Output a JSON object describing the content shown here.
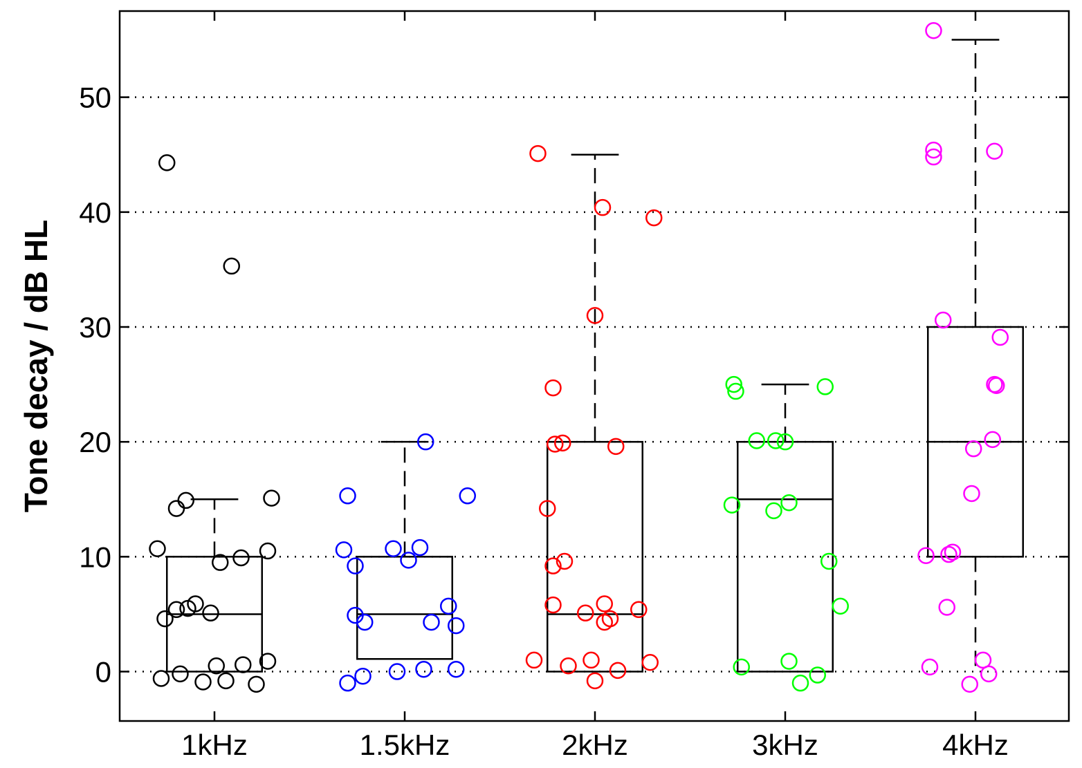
{
  "chart_data": {
    "type": "box",
    "title": "",
    "xlabel": "",
    "ylabel": "Tone decay / dB HL",
    "categories": [
      "1kHz",
      "1.5kHz",
      "2kHz",
      "3kHz",
      "4kHz"
    ],
    "ylim": [
      -4.3,
      57.5
    ],
    "yticks": [
      0,
      10,
      20,
      30,
      40,
      50
    ],
    "grid": "horizontal dotted",
    "boxes": [
      {
        "category": "1kHz",
        "color": "#000000",
        "whisker_low": 0,
        "q1": 0,
        "median": 5,
        "q3": 10,
        "whisker_high": 15
      },
      {
        "category": "1.5kHz",
        "color": "#0000ff",
        "whisker_low": 1.1,
        "q1": 1.1,
        "median": 5,
        "q3": 10,
        "whisker_high": 20
      },
      {
        "category": "2kHz",
        "color": "#ff0000",
        "whisker_low": 0,
        "q1": 0,
        "median": 5,
        "q3": 20,
        "whisker_high": 45
      },
      {
        "category": "3kHz",
        "color": "#00ff00",
        "whisker_low": 0,
        "q1": 0,
        "median": 15,
        "q3": 20,
        "whisker_high": 25
      },
      {
        "category": "4kHz",
        "color": "#ff00ff",
        "whisker_low": 0,
        "q1": 10,
        "median": 20,
        "q3": 30,
        "whisker_high": 55
      }
    ],
    "points": [
      {
        "category": "1kHz",
        "color": "#000000",
        "data": [
          [
            -0.25,
            44.3
          ],
          [
            0.09,
            35.3
          ],
          [
            -0.15,
            14.9
          ],
          [
            -0.2,
            14.2
          ],
          [
            0.3,
            15.1
          ],
          [
            -0.3,
            10.7
          ],
          [
            0.28,
            10.5
          ],
          [
            0.14,
            9.9
          ],
          [
            0.03,
            9.5
          ],
          [
            -0.1,
            5.9
          ],
          [
            -0.2,
            5.4
          ],
          [
            -0.02,
            5.1
          ],
          [
            -0.26,
            4.6
          ],
          [
            -0.14,
            5.5
          ],
          [
            0.28,
            0.9
          ],
          [
            0.15,
            0.6
          ],
          [
            0.01,
            0.5
          ],
          [
            -0.18,
            -0.2
          ],
          [
            -0.28,
            -0.6
          ],
          [
            -0.06,
            -0.9
          ],
          [
            0.06,
            -0.8
          ],
          [
            0.22,
            -1.1
          ]
        ]
      },
      {
        "category": "1.5kHz",
        "color": "#0000ff",
        "data": [
          [
            0.11,
            20.0
          ],
          [
            -0.3,
            15.3
          ],
          [
            0.33,
            15.3
          ],
          [
            -0.32,
            10.6
          ],
          [
            -0.06,
            10.7
          ],
          [
            0.08,
            10.8
          ],
          [
            0.02,
            9.7
          ],
          [
            -0.26,
            9.2
          ],
          [
            -0.26,
            4.9
          ],
          [
            -0.21,
            4.3
          ],
          [
            0.23,
            5.7
          ],
          [
            0.14,
            4.3
          ],
          [
            0.27,
            4.0
          ],
          [
            0.27,
            0.2
          ],
          [
            0.1,
            0.2
          ],
          [
            -0.04,
            0.0
          ],
          [
            -0.22,
            -0.4
          ],
          [
            -0.3,
            -1.0
          ]
        ]
      },
      {
        "category": "2kHz",
        "color": "#ff0000",
        "data": [
          [
            -0.3,
            45.1
          ],
          [
            0.04,
            40.4
          ],
          [
            0.31,
            39.5
          ],
          [
            0.0,
            31.0
          ],
          [
            -0.22,
            24.7
          ],
          [
            -0.21,
            19.8
          ],
          [
            -0.17,
            19.9
          ],
          [
            0.11,
            19.6
          ],
          [
            -0.25,
            14.2
          ],
          [
            -0.16,
            9.6
          ],
          [
            -0.22,
            9.2
          ],
          [
            -0.22,
            5.8
          ],
          [
            0.05,
            5.9
          ],
          [
            -0.05,
            5.1
          ],
          [
            0.23,
            5.4
          ],
          [
            0.08,
            4.6
          ],
          [
            0.05,
            4.3
          ],
          [
            -0.32,
            1.0
          ],
          [
            -0.02,
            1.0
          ],
          [
            0.29,
            0.8
          ],
          [
            -0.14,
            0.5
          ],
          [
            0.12,
            0.1
          ],
          [
            0.0,
            -0.8
          ]
        ]
      },
      {
        "category": "3kHz",
        "color": "#00ff00",
        "data": [
          [
            -0.27,
            25.0
          ],
          [
            -0.26,
            24.4
          ],
          [
            0.21,
            24.8
          ],
          [
            -0.15,
            20.1
          ],
          [
            -0.05,
            20.1
          ],
          [
            0.0,
            20.0
          ],
          [
            -0.28,
            14.5
          ],
          [
            0.02,
            14.7
          ],
          [
            -0.06,
            14.0
          ],
          [
            0.23,
            9.6
          ],
          [
            0.29,
            5.7
          ],
          [
            -0.23,
            0.4
          ],
          [
            0.02,
            0.9
          ],
          [
            0.17,
            -0.3
          ],
          [
            0.08,
            -1.0
          ]
        ]
      },
      {
        "category": "4kHz",
        "color": "#ff00ff",
        "data": [
          [
            -0.22,
            55.8
          ],
          [
            -0.22,
            45.4
          ],
          [
            -0.22,
            44.8
          ],
          [
            0.1,
            45.3
          ],
          [
            -0.17,
            30.6
          ],
          [
            0.13,
            29.1
          ],
          [
            0.11,
            24.9
          ],
          [
            0.1,
            25.0
          ],
          [
            0.09,
            20.2
          ],
          [
            -0.01,
            19.4
          ],
          [
            -0.02,
            15.5
          ],
          [
            -0.14,
            10.2
          ],
          [
            -0.26,
            10.1
          ],
          [
            -0.12,
            10.4
          ],
          [
            -0.15,
            5.6
          ],
          [
            -0.24,
            0.4
          ],
          [
            0.04,
            1.0
          ],
          [
            0.07,
            -0.2
          ],
          [
            -0.03,
            -1.1
          ]
        ]
      }
    ]
  }
}
